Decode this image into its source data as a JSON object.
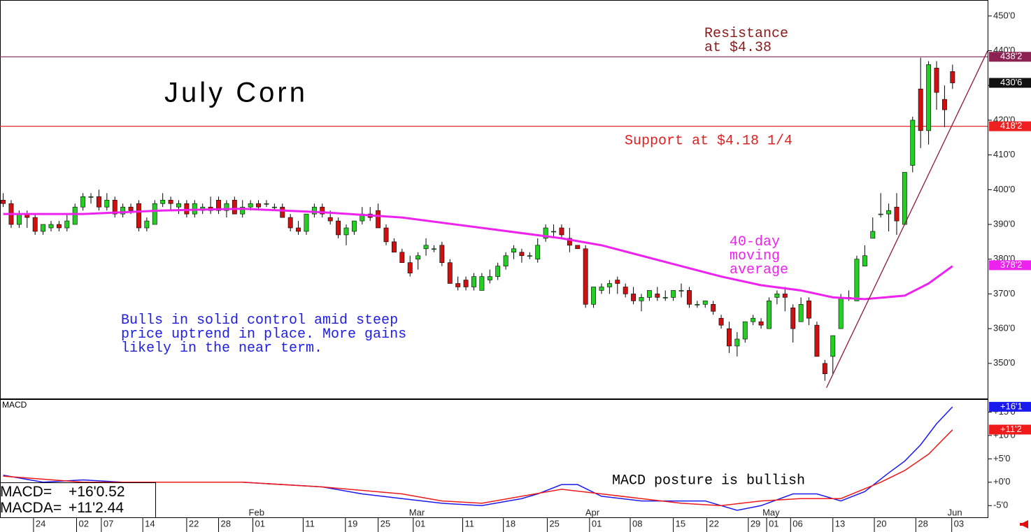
{
  "chart_data": {
    "type": "candlestick",
    "title": "July Corn",
    "open": [
      397,
      396,
      390,
      393,
      392,
      388,
      389,
      390,
      389,
      390,
      395,
      398,
      398,
      395,
      397,
      393,
      395,
      396,
      389,
      390,
      396,
      397,
      395,
      396,
      393,
      394,
      395,
      397,
      394,
      397,
      393,
      395,
      396,
      396,
      395,
      395,
      392,
      389,
      388,
      393,
      395,
      392,
      391,
      387,
      388,
      391,
      393,
      394,
      389,
      385,
      382,
      379,
      380,
      383,
      383,
      384,
      379,
      373,
      374,
      372,
      371,
      374,
      375,
      378,
      382,
      382,
      381,
      380,
      386,
      388,
      389,
      386,
      384,
      383,
      367,
      371,
      372,
      374,
      372,
      370,
      368,
      369,
      370,
      369,
      369,
      371,
      371,
      367,
      367,
      367,
      363,
      360,
      355,
      357,
      362,
      362,
      360,
      369,
      370,
      366,
      362,
      368,
      361,
      350,
      352,
      360,
      369,
      368,
      378,
      386,
      393,
      393,
      395,
      390,
      407,
      429,
      417,
      435,
      426,
      434
    ],
    "high": [
      399,
      397,
      394,
      394,
      393,
      390,
      391,
      391,
      393,
      396,
      399,
      399,
      400,
      399,
      398,
      396,
      396,
      397,
      392,
      397,
      399,
      398,
      397,
      397,
      397,
      396,
      398,
      398,
      397,
      398,
      397,
      397,
      397,
      397,
      396,
      396,
      393,
      391,
      393,
      396,
      396,
      394,
      392,
      390,
      391,
      395,
      395,
      396,
      390,
      386,
      383,
      381,
      382,
      386,
      384,
      385,
      380,
      375,
      375,
      376,
      376,
      377,
      379,
      382,
      384,
      383,
      382,
      386,
      390,
      390,
      390,
      389,
      384,
      384,
      372,
      373,
      374,
      375,
      373,
      372,
      370,
      371,
      372,
      371,
      371,
      373,
      372,
      368,
      368,
      368,
      364,
      362,
      359,
      362,
      364,
      363,
      369,
      371,
      372,
      367,
      369,
      369,
      362,
      351,
      357,
      370,
      371,
      381,
      384,
      392,
      399,
      396,
      399,
      405,
      421,
      438,
      437,
      437,
      430,
      436
    ],
    "low": [
      395,
      389,
      389,
      389,
      387,
      387,
      388,
      388,
      388,
      390,
      394,
      396,
      394,
      394,
      392,
      392,
      393,
      388,
      388,
      390,
      395,
      394,
      393,
      392,
      392,
      393,
      393,
      393,
      392,
      393,
      392,
      394,
      394,
      395,
      394,
      392,
      388,
      387,
      387,
      392,
      392,
      390,
      386,
      384,
      387,
      390,
      391,
      389,
      384,
      382,
      379,
      375,
      377,
      381,
      382,
      378,
      373,
      371,
      371,
      371,
      371,
      373,
      374,
      377,
      380,
      379,
      380,
      379,
      385,
      386,
      386,
      382,
      383,
      366,
      366,
      370,
      370,
      370,
      369,
      367,
      365,
      368,
      368,
      368,
      368,
      369,
      366,
      366,
      366,
      364,
      360,
      353,
      352,
      356,
      361,
      360,
      360,
      367,
      365,
      356,
      362,
      361,
      352,
      345,
      347,
      360,
      368,
      368,
      378,
      386,
      392,
      388,
      387,
      390,
      405,
      412,
      413,
      423,
      418,
      429
    ],
    "close": [
      396,
      390,
      393,
      392,
      388,
      390,
      390,
      389,
      391,
      395,
      398,
      398,
      395,
      397,
      393,
      395,
      394,
      389,
      391,
      396,
      397,
      396,
      396,
      393,
      396,
      395,
      394,
      394,
      396,
      393,
      395,
      396,
      395,
      396,
      395,
      392,
      389,
      388,
      393,
      395,
      393,
      391,
      387,
      389,
      391,
      393,
      392,
      389,
      385,
      382,
      379,
      376,
      381,
      384,
      383,
      379,
      373,
      372,
      372,
      375,
      375,
      375,
      378,
      381,
      383,
      381,
      381,
      384,
      389,
      388,
      387,
      384,
      383,
      367,
      372,
      372,
      373,
      373,
      370,
      368,
      369,
      371,
      369,
      369,
      371,
      371,
      367,
      367,
      368,
      365,
      361,
      355,
      357,
      362,
      363,
      361,
      368,
      370,
      369,
      360,
      367,
      363,
      352,
      347,
      358,
      369,
      369,
      380,
      381,
      388,
      393,
      394,
      391,
      405,
      420,
      417,
      436,
      428,
      423,
      430.75
    ],
    "up_color": "#22d022",
    "down_color": "#d01010",
    "xlim": [
      -0.4,
      123.4
    ],
    "xticks": [
      {
        "value": 3.8,
        "label": "24"
      },
      {
        "value": 9.2,
        "label": "02"
      },
      {
        "value": 12.3,
        "label": "07"
      },
      {
        "value": 17.5,
        "label": "14"
      },
      {
        "value": 23,
        "label": "22"
      },
      {
        "value": 27,
        "label": "28"
      },
      {
        "value": 31.3,
        "label": "01"
      },
      {
        "value": 37.6,
        "label": "11"
      },
      {
        "value": 42.9,
        "label": "19"
      },
      {
        "value": 47,
        "label": "25"
      },
      {
        "value": 51.4,
        "label": "01"
      },
      {
        "value": 57.6,
        "label": "11"
      },
      {
        "value": 62.7,
        "label": "18"
      },
      {
        "value": 68.2,
        "label": "25"
      },
      {
        "value": 73.5,
        "label": "01"
      },
      {
        "value": 78.6,
        "label": "08"
      },
      {
        "value": 84,
        "label": "15"
      },
      {
        "value": 88.2,
        "label": "22"
      },
      {
        "value": 93.4,
        "label": "29"
      },
      {
        "value": 95.7,
        "label": "01"
      },
      {
        "value": 98.7,
        "label": "06"
      },
      {
        "value": 104,
        "label": "13"
      },
      {
        "value": 109.2,
        "label": "20"
      },
      {
        "value": 114.4,
        "label": "28"
      },
      {
        "value": 118.9,
        "label": "03"
      }
    ],
    "month_ticks": [
      {
        "value": 31.3,
        "label": "Feb"
      },
      {
        "value": 51.4,
        "label": "Mar"
      },
      {
        "value": 73.5,
        "label": "Apr"
      },
      {
        "value": 95.7,
        "label": "May"
      },
      {
        "value": 118.9,
        "label": "Jun"
      }
    ],
    "ylim": [
      339.9,
      454.6
    ],
    "yticks": [
      {
        "value": 350,
        "label": "350'0"
      },
      {
        "value": 360,
        "label": "360'0"
      },
      {
        "value": 370,
        "label": "370'0"
      },
      {
        "value": 380,
        "label": "380'0"
      },
      {
        "value": 390,
        "label": "390'0"
      },
      {
        "value": 400,
        "label": "400'0"
      },
      {
        "value": 410,
        "label": "410'0"
      },
      {
        "value": 420,
        "label": "420'0"
      },
      {
        "value": 430,
        "label": "430'0"
      },
      {
        "value": 440,
        "label": "440'0"
      },
      {
        "value": 450,
        "label": "450'0"
      }
    ],
    "moving_average": {
      "color": "#ee22ee",
      "x": [
        0,
        10,
        20,
        30,
        40,
        50,
        60,
        70,
        75,
        80,
        85,
        90,
        95,
        100,
        104,
        108,
        113,
        116,
        119
      ],
      "values": [
        393,
        393,
        394,
        394.5,
        393.5,
        392,
        389,
        386,
        384,
        381,
        378,
        375,
        372.5,
        371,
        369,
        368.5,
        369.5,
        373,
        378
      ]
    },
    "levels": [
      {
        "value": 438.25,
        "color": "#8b3a62"
      },
      {
        "value": 418.25,
        "color": "#e83030"
      }
    ],
    "trendline": {
      "color": "#8b1a3a",
      "x": [
        103.2,
        123.4
      ],
      "values": [
        343,
        440
      ]
    },
    "price_labels": [
      {
        "value": 438.25,
        "label": "438'2",
        "color": "#8b2252"
      },
      {
        "value": 430.75,
        "label": "430'6",
        "color": "#111111"
      },
      {
        "value": 418.25,
        "label": "418'2",
        "color": "#ee2020"
      },
      {
        "value": 378.25,
        "label": "378'2",
        "color": "#ee22ee"
      }
    ],
    "annotations": {
      "resistance": [
        "Resistance",
        "at $4.38"
      ],
      "support": "Support at $4.18 1/4",
      "moving_average": [
        "40-day",
        "moving",
        "average"
      ],
      "commentary": [
        "Bulls in solid control amid steep",
        "price uptrend in place. More gains",
        "likely in the near term."
      ],
      "macd": "MACD posture is bullish"
    },
    "macd": {
      "title": "MACD",
      "ylim": [
        -7.5,
        17.6
      ],
      "yticks": [
        {
          "value": 15,
          "label": "+15'0"
        },
        {
          "value": 10,
          "label": "+10'0"
        },
        {
          "value": 5,
          "label": "+5'0"
        },
        {
          "value": 0,
          "label": "+0'0"
        },
        {
          "value": -5,
          "label": "-5'0"
        }
      ],
      "series": [
        {
          "color": "#1a1aee",
          "x": [
            0,
            5,
            10,
            15,
            20,
            25,
            30,
            35,
            40,
            45,
            50,
            55,
            60,
            65,
            67,
            70,
            72,
            75,
            80,
            85,
            88,
            92,
            95,
            99,
            102,
            105,
            108,
            111,
            113,
            115,
            117,
            119
          ],
          "values": [
            1.5,
            0,
            0.5,
            0,
            0,
            0,
            0,
            -0.5,
            -1,
            -2.5,
            -3.5,
            -4.5,
            -5,
            -3.5,
            -2.5,
            -0.5,
            -0.5,
            -3,
            -4,
            -4,
            -4,
            -6,
            -5,
            -2.5,
            -2.5,
            -4,
            -2,
            2,
            4.5,
            8,
            12.5,
            16.1
          ]
        },
        {
          "color": "#ee1a1a",
          "x": [
            0,
            10,
            20,
            30,
            40,
            50,
            55,
            60,
            65,
            70,
            75,
            80,
            85,
            90,
            95,
            100,
            105,
            110,
            113,
            116,
            119
          ],
          "values": [
            1.3,
            0,
            0,
            0,
            -1,
            -2.5,
            -4,
            -4.5,
            -3,
            -1.5,
            -2.5,
            -3.5,
            -4.5,
            -5,
            -4,
            -3.5,
            -3.5,
            0,
            2.5,
            6,
            11.2
          ]
        }
      ],
      "value_labels": [
        {
          "value": 16.125,
          "label": "+16'1",
          "color": "#1a1aee"
        },
        {
          "value": 11.25,
          "label": "+11'2",
          "color": "#ee1a1a"
        }
      ],
      "readout": [
        [
          "MACD=",
          "+16'0.52"
        ],
        [
          "MACDA=",
          "+11'2.44"
        ]
      ]
    }
  }
}
